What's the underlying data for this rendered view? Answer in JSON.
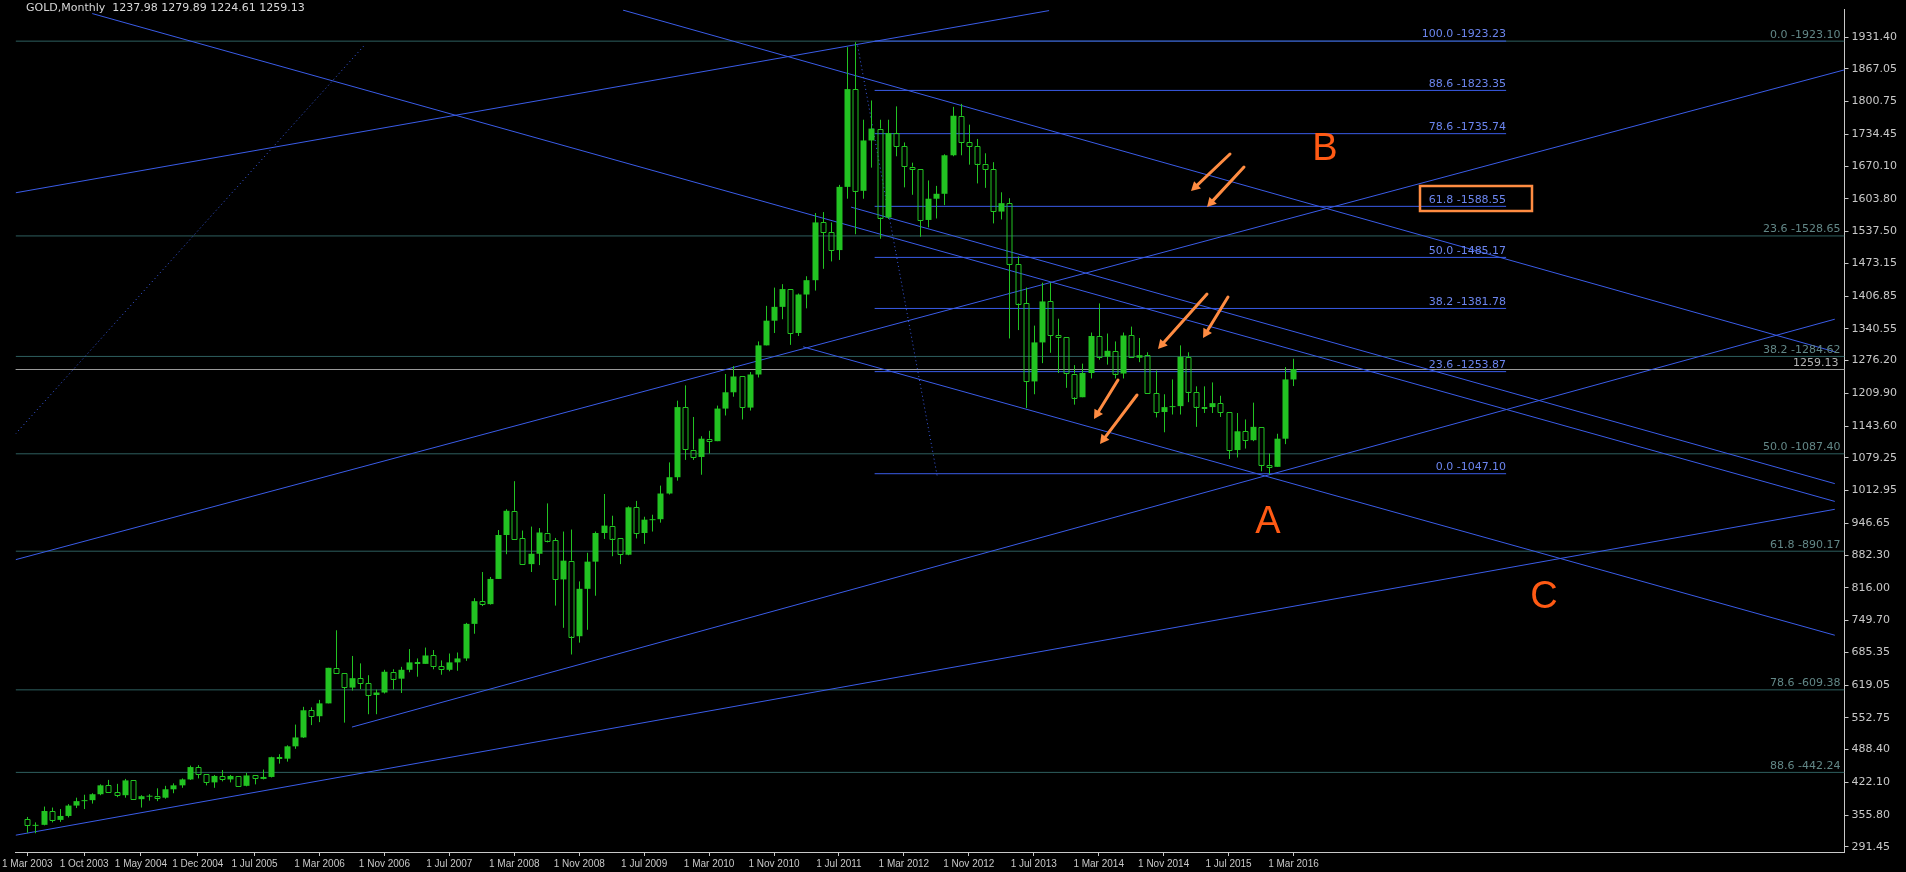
{
  "chart_data": {
    "type": "candlestick",
    "title": "GOLD,Monthly  1237.98 1279.89 1224.61 1259.13",
    "color": "#22c322",
    "x": [
      "2003-03",
      "2003-04",
      "2003-05",
      "2003-06",
      "2003-07",
      "2003-08",
      "2003-09",
      "2003-10",
      "2003-11",
      "2003-12",
      "2004-01",
      "2004-02",
      "2004-03",
      "2004-04",
      "2004-05",
      "2004-06",
      "2004-07",
      "2004-08",
      "2004-09",
      "2004-10",
      "2004-11",
      "2004-12",
      "2005-01",
      "2005-02",
      "2005-03",
      "2005-04",
      "2005-05",
      "2005-06",
      "2005-07",
      "2005-08",
      "2005-09",
      "2005-10",
      "2005-11",
      "2005-12",
      "2006-01",
      "2006-02",
      "2006-03",
      "2006-04",
      "2006-05",
      "2006-06",
      "2006-07",
      "2006-08",
      "2006-09",
      "2006-10",
      "2006-11",
      "2006-12",
      "2007-01",
      "2007-02",
      "2007-03",
      "2007-04",
      "2007-05",
      "2007-06",
      "2007-07",
      "2007-08",
      "2007-09",
      "2007-10",
      "2007-11",
      "2007-12",
      "2008-01",
      "2008-02",
      "2008-03",
      "2008-04",
      "2008-05",
      "2008-06",
      "2008-07",
      "2008-08",
      "2008-09",
      "2008-10",
      "2008-11",
      "2008-12",
      "2009-01",
      "2009-02",
      "2009-03",
      "2009-04",
      "2009-05",
      "2009-06",
      "2009-07",
      "2009-08",
      "2009-09",
      "2009-10",
      "2009-11",
      "2009-12",
      "2010-01",
      "2010-02",
      "2010-03",
      "2010-04",
      "2010-05",
      "2010-06",
      "2010-07",
      "2010-08",
      "2010-09",
      "2010-10",
      "2010-11",
      "2010-12",
      "2011-01",
      "2011-02",
      "2011-03",
      "2011-04",
      "2011-05",
      "2011-06",
      "2011-07",
      "2011-08",
      "2011-09",
      "2011-10",
      "2011-11",
      "2011-12",
      "2012-01",
      "2012-02",
      "2012-03",
      "2012-04",
      "2012-05",
      "2012-06",
      "2012-07",
      "2012-08",
      "2012-09",
      "2012-10",
      "2012-11",
      "2012-12",
      "2013-01",
      "2013-02",
      "2013-03",
      "2013-04",
      "2013-05",
      "2013-06",
      "2013-07",
      "2013-08",
      "2013-09",
      "2013-10",
      "2013-11",
      "2013-12",
      "2014-01",
      "2014-02",
      "2014-03",
      "2014-04",
      "2014-05",
      "2014-06",
      "2014-07",
      "2014-08",
      "2014-09",
      "2014-10",
      "2014-11",
      "2014-12",
      "2015-01",
      "2015-02",
      "2015-03",
      "2015-04",
      "2015-05",
      "2015-06",
      "2015-07",
      "2015-08",
      "2015-09",
      "2015-10",
      "2015-11",
      "2015-12",
      "2016-01",
      "2016-02",
      "2016-03"
    ],
    "ohlc": [
      [
        347,
        352,
        320,
        334
      ],
      [
        334,
        341,
        319,
        336
      ],
      [
        336,
        373,
        335,
        364
      ],
      [
        364,
        371,
        341,
        346
      ],
      [
        346,
        368,
        342,
        354
      ],
      [
        354,
        378,
        351,
        375
      ],
      [
        375,
        391,
        370,
        384
      ],
      [
        384,
        397,
        368,
        386
      ],
      [
        386,
        400,
        379,
        398
      ],
      [
        398,
        418,
        396,
        416
      ],
      [
        416,
        427,
        399,
        402
      ],
      [
        402,
        419,
        392,
        396
      ],
      [
        396,
        429,
        391,
        426
      ],
      [
        426,
        428,
        385,
        388
      ],
      [
        388,
        396,
        371,
        394
      ],
      [
        394,
        398,
        385,
        395
      ],
      [
        395,
        410,
        384,
        391
      ],
      [
        391,
        415,
        389,
        408
      ],
      [
        408,
        420,
        400,
        416
      ],
      [
        416,
        430,
        411,
        428
      ],
      [
        428,
        456,
        427,
        453
      ],
      [
        453,
        457,
        430,
        438
      ],
      [
        438,
        439,
        416,
        422
      ],
      [
        422,
        437,
        411,
        435
      ],
      [
        435,
        447,
        424,
        428
      ],
      [
        428,
        437,
        422,
        435
      ],
      [
        435,
        435,
        414,
        415
      ],
      [
        415,
        441,
        414,
        436
      ],
      [
        436,
        438,
        418,
        429
      ],
      [
        429,
        448,
        428,
        433
      ],
      [
        433,
        474,
        432,
        473
      ],
      [
        473,
        479,
        460,
        470
      ],
      [
        470,
        497,
        464,
        495
      ],
      [
        495,
        539,
        490,
        513
      ],
      [
        513,
        575,
        512,
        568
      ],
      [
        568,
        574,
        538,
        556
      ],
      [
        556,
        589,
        544,
        582
      ],
      [
        582,
        654,
        582,
        654
      ],
      [
        654,
        730,
        640,
        643
      ],
      [
        643,
        646,
        543,
        614
      ],
      [
        614,
        678,
        608,
        633
      ],
      [
        633,
        663,
        611,
        623
      ],
      [
        623,
        639,
        560,
        599
      ],
      [
        599,
        610,
        560,
        604
      ],
      [
        604,
        650,
        602,
        646
      ],
      [
        646,
        651,
        610,
        632
      ],
      [
        632,
        656,
        603,
        650
      ],
      [
        650,
        692,
        645,
        665
      ],
      [
        665,
        673,
        636,
        662
      ],
      [
        662,
        695,
        662,
        679
      ],
      [
        679,
        690,
        651,
        657
      ],
      [
        657,
        669,
        640,
        650
      ],
      [
        650,
        683,
        647,
        665
      ],
      [
        665,
        685,
        648,
        673
      ],
      [
        673,
        745,
        668,
        743
      ],
      [
        743,
        795,
        723,
        789
      ],
      [
        789,
        848,
        779,
        783
      ],
      [
        783,
        838,
        782,
        834
      ],
      [
        834,
        933,
        834,
        923
      ],
      [
        923,
        975,
        884,
        972
      ],
      [
        972,
        1032,
        913,
        916
      ],
      [
        916,
        932,
        862,
        864
      ],
      [
        864,
        940,
        848,
        885
      ],
      [
        885,
        937,
        862,
        928
      ],
      [
        928,
        987,
        908,
        912
      ],
      [
        912,
        917,
        780,
        833
      ],
      [
        833,
        930,
        735,
        871
      ],
      [
        871,
        934,
        681,
        718
      ],
      [
        718,
        829,
        705,
        814
      ],
      [
        814,
        887,
        731,
        869
      ],
      [
        869,
        930,
        800,
        927
      ],
      [
        927,
        1006,
        915,
        942
      ],
      [
        942,
        962,
        880,
        916
      ],
      [
        916,
        917,
        864,
        883
      ],
      [
        883,
        981,
        882,
        979
      ],
      [
        979,
        992,
        916,
        927
      ],
      [
        927,
        960,
        905,
        954
      ],
      [
        954,
        964,
        930,
        955
      ],
      [
        955,
        1023,
        948,
        1007
      ],
      [
        1007,
        1070,
        1005,
        1040
      ],
      [
        1040,
        1195,
        1033,
        1182
      ],
      [
        1182,
        1226,
        1075,
        1096
      ],
      [
        1096,
        1162,
        1075,
        1081
      ],
      [
        1081,
        1123,
        1045,
        1118
      ],
      [
        1118,
        1134,
        1088,
        1113
      ],
      [
        1113,
        1185,
        1113,
        1179
      ],
      [
        1179,
        1249,
        1165,
        1212
      ],
      [
        1212,
        1265,
        1203,
        1244
      ],
      [
        1244,
        1245,
        1157,
        1181
      ],
      [
        1181,
        1253,
        1175,
        1248
      ],
      [
        1248,
        1315,
        1242,
        1307
      ],
      [
        1307,
        1387,
        1307,
        1357
      ],
      [
        1357,
        1424,
        1332,
        1385
      ],
      [
        1385,
        1431,
        1360,
        1421
      ],
      [
        1421,
        1424,
        1308,
        1332
      ],
      [
        1332,
        1412,
        1326,
        1410
      ],
      [
        1410,
        1447,
        1382,
        1439
      ],
      [
        1439,
        1575,
        1418,
        1556
      ],
      [
        1556,
        1577,
        1462,
        1536
      ],
      [
        1536,
        1556,
        1477,
        1500
      ],
      [
        1500,
        1632,
        1480,
        1628
      ],
      [
        1628,
        1911,
        1604,
        1826
      ],
      [
        1826,
        1921,
        1532,
        1620
      ],
      [
        1620,
        1764,
        1604,
        1722
      ],
      [
        1722,
        1803,
        1667,
        1746
      ],
      [
        1746,
        1764,
        1523,
        1566
      ],
      [
        1566,
        1764,
        1563,
        1737
      ],
      [
        1737,
        1791,
        1690,
        1710
      ],
      [
        1710,
        1718,
        1627,
        1669
      ],
      [
        1669,
        1677,
        1612,
        1664
      ],
      [
        1664,
        1667,
        1527,
        1561
      ],
      [
        1561,
        1641,
        1546,
        1604
      ],
      [
        1604,
        1630,
        1564,
        1614
      ],
      [
        1614,
        1694,
        1591,
        1692
      ],
      [
        1692,
        1790,
        1690,
        1772
      ],
      [
        1772,
        1796,
        1692,
        1719
      ],
      [
        1719,
        1754,
        1673,
        1711
      ],
      [
        1711,
        1725,
        1635,
        1675
      ],
      [
        1675,
        1696,
        1626,
        1664
      ],
      [
        1664,
        1678,
        1554,
        1578
      ],
      [
        1578,
        1617,
        1562,
        1595
      ],
      [
        1595,
        1605,
        1321,
        1472
      ],
      [
        1472,
        1487,
        1338,
        1392
      ],
      [
        1392,
        1424,
        1180,
        1234
      ],
      [
        1234,
        1347,
        1208,
        1313
      ],
      [
        1313,
        1434,
        1271,
        1396
      ],
      [
        1396,
        1434,
        1292,
        1327
      ],
      [
        1327,
        1361,
        1251,
        1323
      ],
      [
        1323,
        1324,
        1221,
        1250
      ],
      [
        1250,
        1267,
        1187,
        1202
      ],
      [
        1202,
        1270,
        1202,
        1251
      ],
      [
        1251,
        1333,
        1240,
        1326
      ],
      [
        1326,
        1392,
        1278,
        1284
      ],
      [
        1284,
        1331,
        1268,
        1296
      ],
      [
        1296,
        1315,
        1240,
        1250
      ],
      [
        1250,
        1333,
        1240,
        1327
      ],
      [
        1327,
        1345,
        1281,
        1282
      ],
      [
        1282,
        1322,
        1273,
        1287
      ],
      [
        1287,
        1293,
        1207,
        1210
      ],
      [
        1210,
        1256,
        1161,
        1172
      ],
      [
        1172,
        1208,
        1131,
        1182
      ],
      [
        1182,
        1238,
        1167,
        1184
      ],
      [
        1184,
        1307,
        1167,
        1284
      ],
      [
        1284,
        1293,
        1192,
        1213
      ],
      [
        1213,
        1224,
        1142,
        1183
      ],
      [
        1183,
        1224,
        1170,
        1182
      ],
      [
        1182,
        1232,
        1170,
        1190
      ],
      [
        1190,
        1205,
        1162,
        1172
      ],
      [
        1172,
        1174,
        1077,
        1095
      ],
      [
        1095,
        1170,
        1080,
        1133
      ],
      [
        1133,
        1157,
        1098,
        1115
      ],
      [
        1115,
        1191,
        1113,
        1142
      ],
      [
        1142,
        1143,
        1052,
        1065
      ],
      [
        1065,
        1088,
        1046,
        1061
      ],
      [
        1061,
        1128,
        1061,
        1118
      ],
      [
        1118,
        1263,
        1107,
        1238
      ],
      [
        1237.98,
        1279.89,
        1224.61,
        1259.13
      ]
    ],
    "series": [
      {
        "type": "line",
        "color": "#3a5ce8",
        "x": [
          "2003-01-18",
          "2013-08-28"
        ],
        "values": [
          1616,
          1985
        ]
      },
      {
        "type": "line",
        "color": "#3a5ce8",
        "x": [
          "2003-01-18",
          "2021-10-28"
        ],
        "values": [
          873,
          1865
        ]
      },
      {
        "type": "line",
        "color": "#3a5ce8",
        "x": [
          "2009-04-13",
          "2021-09-22"
        ],
        "values": [
          1986,
          1294
        ]
      },
      {
        "type": "line",
        "color": "#3a5ce8",
        "x": [
          "2006-07-01",
          "2021-09-22"
        ],
        "values": [
          534,
          1360
        ]
      },
      {
        "type": "line",
        "color": "#3a5ce8",
        "x": [
          "2003-11-01",
          "2021-09-22"
        ],
        "values": [
          1979,
          991
        ]
      },
      {
        "type": "line",
        "color": "#3a5ce8",
        "x": [
          "2011-08-16",
          "2021-09-22"
        ],
        "values": [
          1587,
          1027
        ]
      },
      {
        "type": "line",
        "color": "#3a5ce8",
        "x": [
          "2011-02-19",
          "2021-09-22"
        ],
        "values": [
          1304,
          720
        ]
      },
      {
        "type": "line",
        "color": "#3a5ce8",
        "x": [
          "2003-01-18",
          "2021-09-22"
        ],
        "values": [
          315,
          975
        ]
      },
      {
        "type": "line",
        "color": "#3a5ce8",
        "line_style": "dotted",
        "x": [
          "2003-01-18",
          "2006-08-16"
        ],
        "values": [
          1128,
          1914
        ]
      },
      {
        "type": "line",
        "color": "#3a5ce8",
        "line_style": "dotted",
        "x": [
          "2011-09-10",
          "2012-07-04"
        ],
        "values": [
          1914,
          1043
        ]
      },
      {
        "type": "line",
        "name": "100.0 -1923.23",
        "color": "#3a5ce8",
        "x": [
          "2011-11-13",
          "2018-05-07"
        ],
        "values": [
          1923.23,
          1923.23
        ]
      },
      {
        "type": "line",
        "name": "88.6 -1823.35",
        "color": "#3a5ce8",
        "x": [
          "2011-11-13",
          "2018-05-07"
        ],
        "values": [
          1823.35,
          1823.35
        ]
      },
      {
        "type": "line",
        "name": "78.6 -1735.74",
        "color": "#3a5ce8",
        "x": [
          "2011-11-13",
          "2018-05-07"
        ],
        "values": [
          1735.74,
          1735.74
        ]
      },
      {
        "type": "line",
        "name": "61.8 -1588.55",
        "color": "#3a5ce8",
        "x": [
          "2011-11-13",
          "2018-05-07"
        ],
        "values": [
          1588.55,
          1588.55
        ]
      },
      {
        "type": "line",
        "name": "50.0 -1485.17",
        "color": "#3a5ce8",
        "x": [
          "2011-11-13",
          "2018-05-07"
        ],
        "values": [
          1485.17,
          1485.17
        ]
      },
      {
        "type": "line",
        "name": "38.2 -1381.78",
        "color": "#3a5ce8",
        "x": [
          "2011-11-13",
          "2018-05-07"
        ],
        "values": [
          1381.78,
          1381.78
        ]
      },
      {
        "type": "line",
        "name": "23.6 -1253.87",
        "color": "#3a5ce8",
        "x": [
          "2011-11-13",
          "2018-05-07"
        ],
        "values": [
          1253.87,
          1253.87
        ]
      },
      {
        "type": "line",
        "name": "0.0 -1047.10",
        "color": "#3a5ce8",
        "x": [
          "2011-11-13",
          "2018-05-07"
        ],
        "values": [
          1047.1,
          1047.1
        ]
      },
      {
        "type": "line",
        "name": "0.0 -1923.10",
        "color": "#2e5f5f",
        "x": [
          "2003-01-18",
          "2021-10-28"
        ],
        "values": [
          1923.1,
          1923.1
        ]
      },
      {
        "type": "line",
        "name": "23.6 -1528.65",
        "color": "#2e5f5f",
        "x": [
          "2003-01-18",
          "2021-10-28"
        ],
        "values": [
          1528.65,
          1528.65
        ]
      },
      {
        "type": "line",
        "name": "38.2 -1284.62",
        "color": "#2e5f5f",
        "x": [
          "2003-01-18",
          "2021-10-28"
        ],
        "values": [
          1284.62,
          1284.62
        ]
      },
      {
        "type": "line",
        "name": "50.0 -1087.40",
        "color": "#2e5f5f",
        "x": [
          "2003-01-18",
          "2021-10-28"
        ],
        "values": [
          1087.4,
          1087.4
        ]
      },
      {
        "type": "line",
        "name": "61.8 -890.17",
        "color": "#2e5f5f",
        "x": [
          "2003-01-18",
          "2021-10-28"
        ],
        "values": [
          890.17,
          890.17
        ]
      },
      {
        "type": "line",
        "name": "78.6 -609.38",
        "color": "#2e5f5f",
        "x": [
          "2003-01-18",
          "2021-10-28"
        ],
        "values": [
          609.38,
          609.38
        ]
      },
      {
        "type": "line",
        "name": "88.6 -442.24",
        "color": "#2e5f5f",
        "x": [
          "2003-01-18",
          "2021-10-28"
        ],
        "values": [
          442.24,
          442.24
        ]
      }
    ],
    "ref_lines": [
      {
        "axis": "y",
        "value": 1259.13,
        "label": "1259.13",
        "color": "#9a9a9a"
      }
    ],
    "annotations": [
      "A",
      "B",
      "C"
    ],
    "xlim": [
      "2003-01-18",
      "2021-10-28"
    ],
    "xticks": [
      {
        "value": "2003-03",
        "label": "1 Mar 2003"
      },
      {
        "value": "2003-10",
        "label": "1 Oct 2003"
      },
      {
        "value": "2004-05",
        "label": "1 May 2004"
      },
      {
        "value": "2004-12",
        "label": "1 Dec 2004"
      },
      {
        "value": "2005-07",
        "label": "1 Jul 2005"
      },
      {
        "value": "2006-03",
        "label": "1 Mar 2006"
      },
      {
        "value": "2006-11",
        "label": "1 Nov 2006"
      },
      {
        "value": "2007-07",
        "label": "1 Jul 2007"
      },
      {
        "value": "2008-03",
        "label": "1 Mar 2008"
      },
      {
        "value": "2008-11",
        "label": "1 Nov 2008"
      },
      {
        "value": "2009-07",
        "label": "1 Jul 2009"
      },
      {
        "value": "2010-03",
        "label": "1 Mar 2010"
      },
      {
        "value": "2010-11",
        "label": "1 Nov 2010"
      },
      {
        "value": "2011-07",
        "label": "1 Jul 2011"
      },
      {
        "value": "2012-03",
        "label": "1 Mar 2012"
      },
      {
        "value": "2012-11",
        "label": "1 Nov 2012"
      },
      {
        "value": "2013-07",
        "label": "1 Jul 2013"
      },
      {
        "value": "2014-03",
        "label": "1 Mar 2014"
      },
      {
        "value": "2014-11",
        "label": "1 Nov 2014"
      },
      {
        "value": "2015-07",
        "label": "1 Jul 2015"
      },
      {
        "value": "2016-03",
        "label": "1 Mar 2016"
      }
    ],
    "ylim": [
      281,
      1987
    ],
    "yticks": [
      {
        "value": 291.45,
        "label": "291.45"
      },
      {
        "value": 355.8,
        "label": "355.80"
      },
      {
        "value": 422.1,
        "label": "422.10"
      },
      {
        "value": 488.4,
        "label": "488.40"
      },
      {
        "value": 552.75,
        "label": "552.75"
      },
      {
        "value": 619.05,
        "label": "619.05"
      },
      {
        "value": 685.35,
        "label": "685.35"
      },
      {
        "value": 749.7,
        "label": "749.70"
      },
      {
        "value": 816,
        "label": "816.00"
      },
      {
        "value": 882.3,
        "label": "882.30"
      },
      {
        "value": 946.65,
        "label": "946.65"
      },
      {
        "value": 1012.95,
        "label": "1012.95"
      },
      {
        "value": 1079.25,
        "label": "1079.25"
      },
      {
        "value": 1143.6,
        "label": "1143.60"
      },
      {
        "value": 1209.9,
        "label": "1209.90"
      },
      {
        "value": 1276.2,
        "label": "1276.20"
      },
      {
        "value": 1340.55,
        "label": "1340.55"
      },
      {
        "value": 1406.85,
        "label": "1406.85"
      },
      {
        "value": 1473.15,
        "label": "1473.15"
      },
      {
        "value": 1537.5,
        "label": "1537.50"
      },
      {
        "value": 1603.8,
        "label": "1603.80"
      },
      {
        "value": 1670.1,
        "label": "1670.10"
      },
      {
        "value": 1734.45,
        "label": "1734.45"
      },
      {
        "value": 1800.75,
        "label": "1800.75"
      },
      {
        "value": 1867.05,
        "label": "1867.05"
      },
      {
        "value": 1931.4,
        "label": "1931.40"
      }
    ]
  }
}
